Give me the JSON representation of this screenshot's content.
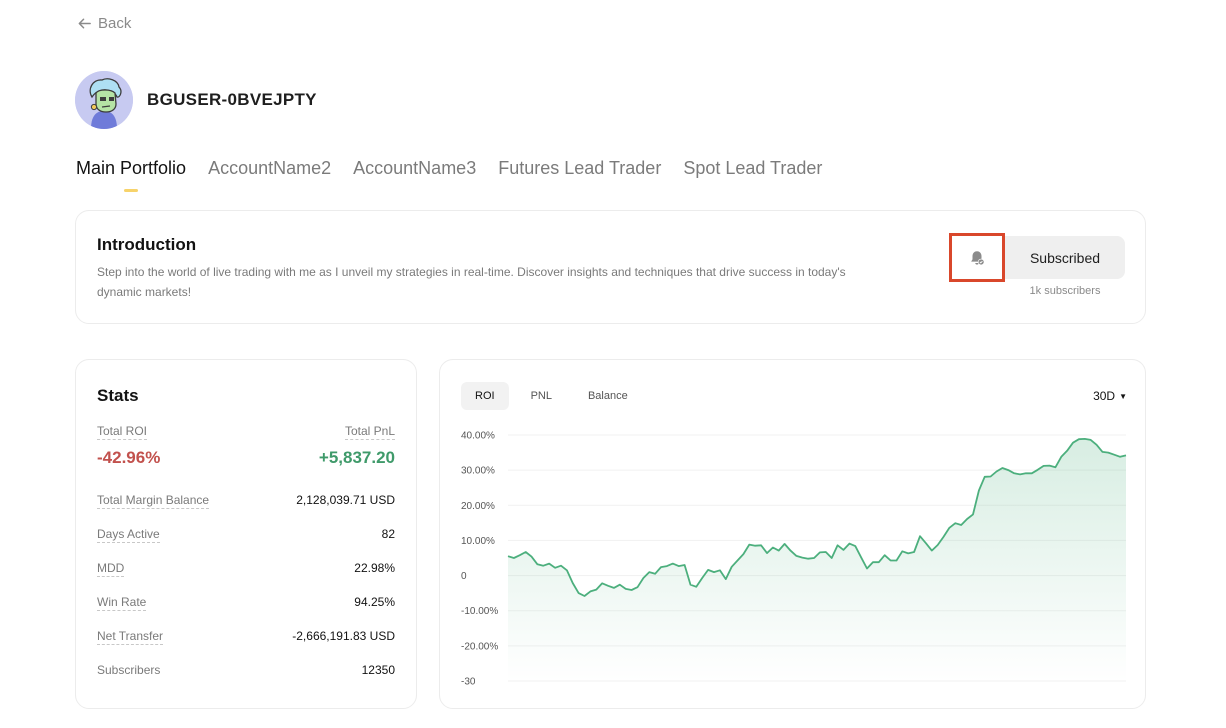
{
  "nav": {
    "back_label": "Back",
    "back_icon": "arrow-left-icon"
  },
  "profile": {
    "username": "BGUSER-0BVEJPTY"
  },
  "tabs": [
    {
      "label": "Main Portfolio",
      "active": true
    },
    {
      "label": "AccountName2",
      "active": false
    },
    {
      "label": "AccountName3",
      "active": false
    },
    {
      "label": "Futures Lead Trader",
      "active": false
    },
    {
      "label": "Spot Lead Trader",
      "active": false
    }
  ],
  "intro": {
    "title": "Introduction",
    "text": "Step into the world of live trading with me as I unveil my strategies in real-time. Discover insights and techniques that drive success in today's dynamic markets!",
    "subscribe_label": "Subscribed",
    "subscriber_count": "1k subscribers",
    "bell_icon": "bell-check-icon",
    "highlight_color": "#d9472b"
  },
  "stats": {
    "title": "Stats",
    "total_roi_label": "Total ROI",
    "total_roi": "-42.96%",
    "total_pnl_label": "Total PnL",
    "total_pnl": "+5,837.20",
    "rows": [
      {
        "label": "Total Margin Balance",
        "value": "2,128,039.71 USD"
      },
      {
        "label": "Days Active",
        "value": "82"
      },
      {
        "label": "MDD",
        "value": "22.98%"
      },
      {
        "label": "Win Rate",
        "value": "94.25%"
      },
      {
        "label": "Net Transfer",
        "value": "-2,666,191.83 USD"
      },
      {
        "label": "Subscribers",
        "value": "12350"
      }
    ],
    "negative_color": "#c2514d",
    "positive_color": "#3f9a6a"
  },
  "chart_tabs": [
    "ROI",
    "PNL",
    "Balance"
  ],
  "chart_range": "30D",
  "chart_data": {
    "type": "area",
    "color": "#4caf7d",
    "y_tick_labels": [
      "40.00%",
      "30.00%",
      "20.00%",
      "10.00%",
      "0",
      "-10.00%",
      "-20.00%",
      "-30"
    ],
    "ylim": [
      -30,
      40
    ],
    "grid": true,
    "values": [
      5.5,
      5,
      5.8,
      6.7,
      5.4,
      3.2,
      2.8,
      3.4,
      2.2,
      2.8,
      1.5,
      -2.1,
      -5,
      -5.8,
      -4.5,
      -4,
      -2.2,
      -2.9,
      -3.5,
      -2.6,
      -3.8,
      -4.1,
      -3.3,
      -0.7,
      1,
      0.5,
      2.4,
      2.7,
      3.4,
      2.7,
      3,
      -2.6,
      -3.2,
      -0.7,
      1.6,
      1,
      1.5,
      -1,
      2.5,
      4.3,
      6.1,
      8.8,
      8.5,
      8.6,
      6.4,
      8,
      7.1,
      9,
      7.1,
      5.6,
      5.1,
      4.8,
      5,
      6.6,
      6.7,
      5,
      8.6,
      7.3,
      9.1,
      8.4,
      5.2,
      2,
      3.8,
      3.8,
      5.8,
      4.3,
      4.3,
      6.9,
      6.3,
      6.7,
      11.2,
      9.2,
      7.1,
      8.7,
      11,
      13.6,
      14.9,
      14.4,
      16.1,
      17.4,
      24.2,
      28.1,
      28.2,
      29.6,
      30.6,
      30,
      29.1,
      28.8,
      29.1,
      29.1,
      30.1,
      31.2,
      31.3,
      30.8,
      33.8,
      35.5,
      37.8,
      38.8,
      38.9,
      38.6,
      37.2,
      35.2,
      35,
      34.4,
      33.8,
      34.2
    ]
  }
}
